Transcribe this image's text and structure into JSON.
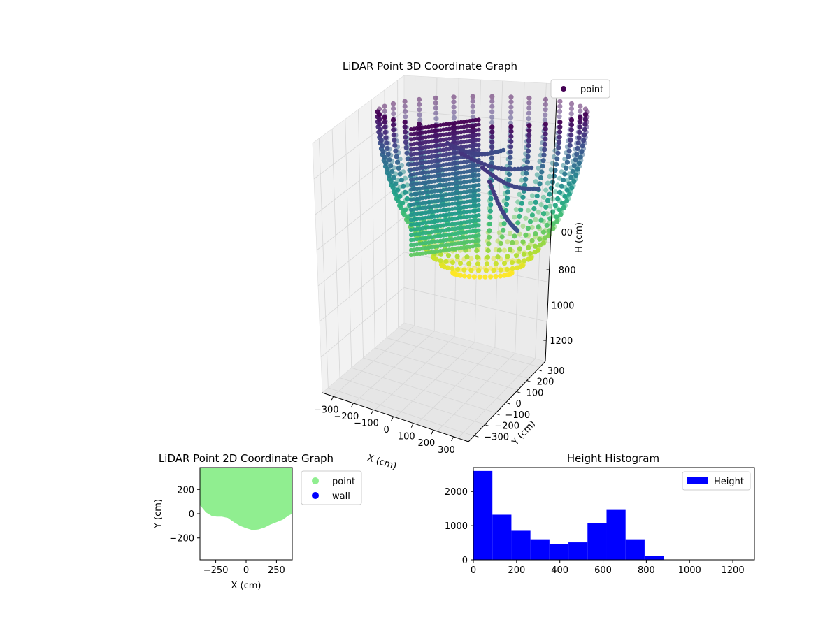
{
  "chart_data": [
    {
      "type": "scatter",
      "projection": "3d",
      "title": "LiDAR Point 3D Coordinate Graph",
      "xlabel": "X (cm)",
      "ylabel": "Y (cm)",
      "zlabel": "H (cm)",
      "xticks": [
        "−300",
        "−200",
        "−100",
        "0",
        "100",
        "200",
        "300"
      ],
      "yticks": [
        "−300",
        "−200",
        "−100",
        "0",
        "100",
        "200",
        "300"
      ],
      "zticks": [
        "800",
        "1000",
        "1200"
      ],
      "zlabel_partial_tick": "00",
      "z_axis_inverted": true,
      "colormap": "viridis",
      "grid": true,
      "legend": {
        "position": "top-right",
        "entries": [
          {
            "name": "point",
            "color": "#440154"
          }
        ]
      },
      "series": [
        {
          "name": "point",
          "description_shape": "bowl",
          "x_range": [
            -350,
            350
          ],
          "y_range": [
            -350,
            350
          ],
          "h_range": [
            0,
            880
          ]
        }
      ]
    },
    {
      "type": "scatter",
      "title": "LiDAR Point 2D Coordinate Graph",
      "xlabel": "X (cm)",
      "ylabel": "Y (cm)",
      "xlim": [
        -380,
        380
      ],
      "ylim": [
        -380,
        380
      ],
      "xticks": [
        "−250",
        "0",
        "250"
      ],
      "yticks": [
        "200",
        "0",
        "−200"
      ],
      "legend": {
        "position": "outside-right",
        "entries": [
          {
            "name": "point",
            "color": "#90ee90"
          },
          {
            "name": "wall",
            "color": "#0000ff"
          }
        ]
      },
      "series": [
        {
          "name": "point",
          "color": "#90ee90",
          "lower_boundary": [
            [
              -380,
              70
            ],
            [
              -330,
              10
            ],
            [
              -280,
              -20
            ],
            [
              -240,
              -25
            ],
            [
              -200,
              -25
            ],
            [
              -150,
              -35
            ],
            [
              -100,
              -70
            ],
            [
              -50,
              -100
            ],
            [
              0,
              -120
            ],
            [
              50,
              -135
            ],
            [
              100,
              -130
            ],
            [
              150,
              -115
            ],
            [
              200,
              -90
            ],
            [
              250,
              -70
            ],
            [
              300,
              -50
            ],
            [
              350,
              -15
            ],
            [
              380,
              0
            ]
          ]
        },
        {
          "name": "wall",
          "color": "#0000ff",
          "points": []
        }
      ]
    },
    {
      "type": "bar",
      "title": "Height Histogram",
      "xlim": [
        0,
        1300
      ],
      "ylim": [
        0,
        2700
      ],
      "xticks": [
        "0",
        "200",
        "400",
        "600",
        "800",
        "1000",
        "1200"
      ],
      "yticks": [
        "0",
        "1000",
        "2000"
      ],
      "color": "#0000ff",
      "legend": {
        "position": "top-right",
        "entries": [
          {
            "name": "Height",
            "color": "#0000ff"
          }
        ]
      },
      "bin_width": 88,
      "bins": [
        {
          "start": 0,
          "value": 2600
        },
        {
          "start": 88,
          "value": 1320
        },
        {
          "start": 176,
          "value": 850
        },
        {
          "start": 264,
          "value": 600
        },
        {
          "start": 352,
          "value": 470
        },
        {
          "start": 440,
          "value": 510
        },
        {
          "start": 528,
          "value": 1080
        },
        {
          "start": 616,
          "value": 1460
        },
        {
          "start": 704,
          "value": 600
        },
        {
          "start": 792,
          "value": 120
        }
      ]
    }
  ]
}
